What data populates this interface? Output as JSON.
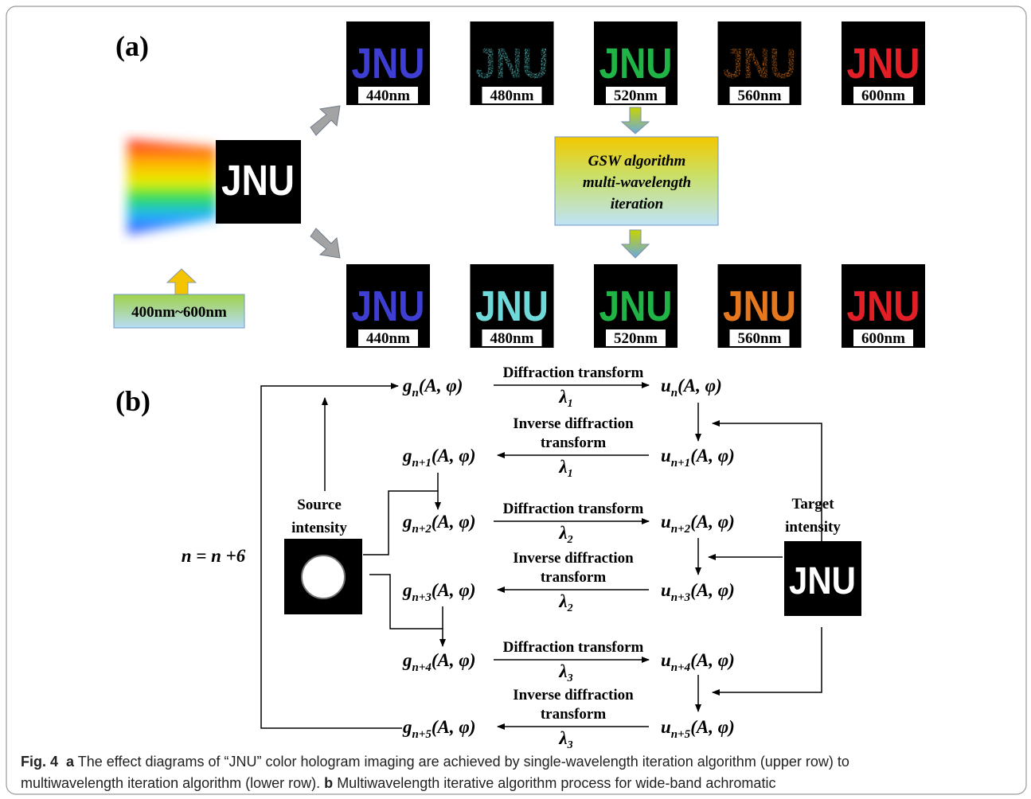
{
  "panel_a": {
    "label": "(a)",
    "source": {
      "text": "JNU",
      "spectrum_label": "400nm~600nm"
    },
    "single_wavelength_row": [
      {
        "text": "JNU",
        "wavelength": "440nm",
        "color": "#3e3ed2"
      },
      {
        "text": "JNU",
        "wavelength": "480nm",
        "color": "#5cc9c9"
      },
      {
        "text": "JNU",
        "wavelength": "520nm",
        "color": "#1fb445"
      },
      {
        "text": "JNU",
        "wavelength": "560nm",
        "color": "#db7420"
      },
      {
        "text": "JNU",
        "wavelength": "600nm",
        "color": "#e21f26"
      }
    ],
    "algorithm_box": [
      "GSW algorithm",
      "multi-wavelength",
      "iteration"
    ],
    "multi_wavelength_row": [
      {
        "text": "JNU",
        "wavelength": "440nm",
        "color": "#3e3ed2"
      },
      {
        "text": "JNU",
        "wavelength": "480nm",
        "color": "#6fd8d8"
      },
      {
        "text": "JNU",
        "wavelength": "520nm",
        "color": "#1fb445"
      },
      {
        "text": "JNU",
        "wavelength": "560nm",
        "color": "#e5781f"
      },
      {
        "text": "JNU",
        "wavelength": "600nm",
        "color": "#e21f26"
      }
    ]
  },
  "panel_b": {
    "label": "(b)",
    "loop_label": "n = n +6",
    "source_label": [
      "Source",
      "intensity"
    ],
    "target_label": [
      "Target",
      "intensity"
    ],
    "target_text": "JNU",
    "steps": [
      {
        "g": {
          "sym": "g",
          "sub": "n",
          "args": "(A, φ)"
        },
        "u": {
          "sym": "u",
          "sub": "n",
          "args": "(A, φ)"
        },
        "transform": [
          "Diffraction transform"
        ],
        "lambda": {
          "sym": "λ",
          "sub": "1"
        }
      },
      {
        "g": {
          "sym": "g",
          "sub": "n+1",
          "args": "(A, φ)"
        },
        "u": {
          "sym": "u",
          "sub": "n+1",
          "args": "(A, φ)"
        },
        "transform": [
          "Inverse diffraction",
          "transform"
        ],
        "lambda": {
          "sym": "λ",
          "sub": "1"
        }
      },
      {
        "g": {
          "sym": "g",
          "sub": "n+2",
          "args": "(A, φ)"
        },
        "u": {
          "sym": "u",
          "sub": "n+2",
          "args": "(A, φ)"
        },
        "transform": [
          "Diffraction transform"
        ],
        "lambda": {
          "sym": "λ",
          "sub": "2"
        }
      },
      {
        "g": {
          "sym": "g",
          "sub": "n+3",
          "args": "(A, φ)"
        },
        "u": {
          "sym": "u",
          "sub": "n+3",
          "args": "(A, φ)"
        },
        "transform": [
          "Inverse diffraction",
          "transform"
        ],
        "lambda": {
          "sym": "λ",
          "sub": "2"
        }
      },
      {
        "g": {
          "sym": "g",
          "sub": "n+4",
          "args": "(A, φ)"
        },
        "u": {
          "sym": "u",
          "sub": "n+4",
          "args": "(A, φ)"
        },
        "transform": [
          "Diffraction transform"
        ],
        "lambda": {
          "sym": "λ",
          "sub": "3"
        }
      },
      {
        "g": {
          "sym": "g",
          "sub": "n+5",
          "args": "(A, φ)"
        },
        "u": {
          "sym": "u",
          "sub": "n+5",
          "args": "(A, φ)"
        },
        "transform": [
          "Inverse diffraction",
          "transform"
        ],
        "lambda": {
          "sym": "λ",
          "sub": "3"
        }
      }
    ]
  },
  "caption": {
    "figure": "Fig. 4",
    "a_tag": "a",
    "a_text": "The effect diagrams of “JNU” color hologram imaging are achieved by single-wavelength iteration algorithm (upper row) to multiwavelength iteration algorithm (lower row).",
    "b_tag": "b",
    "b_text": "Multiwavelength iterative algorithm process for wide-band achromatic"
  }
}
